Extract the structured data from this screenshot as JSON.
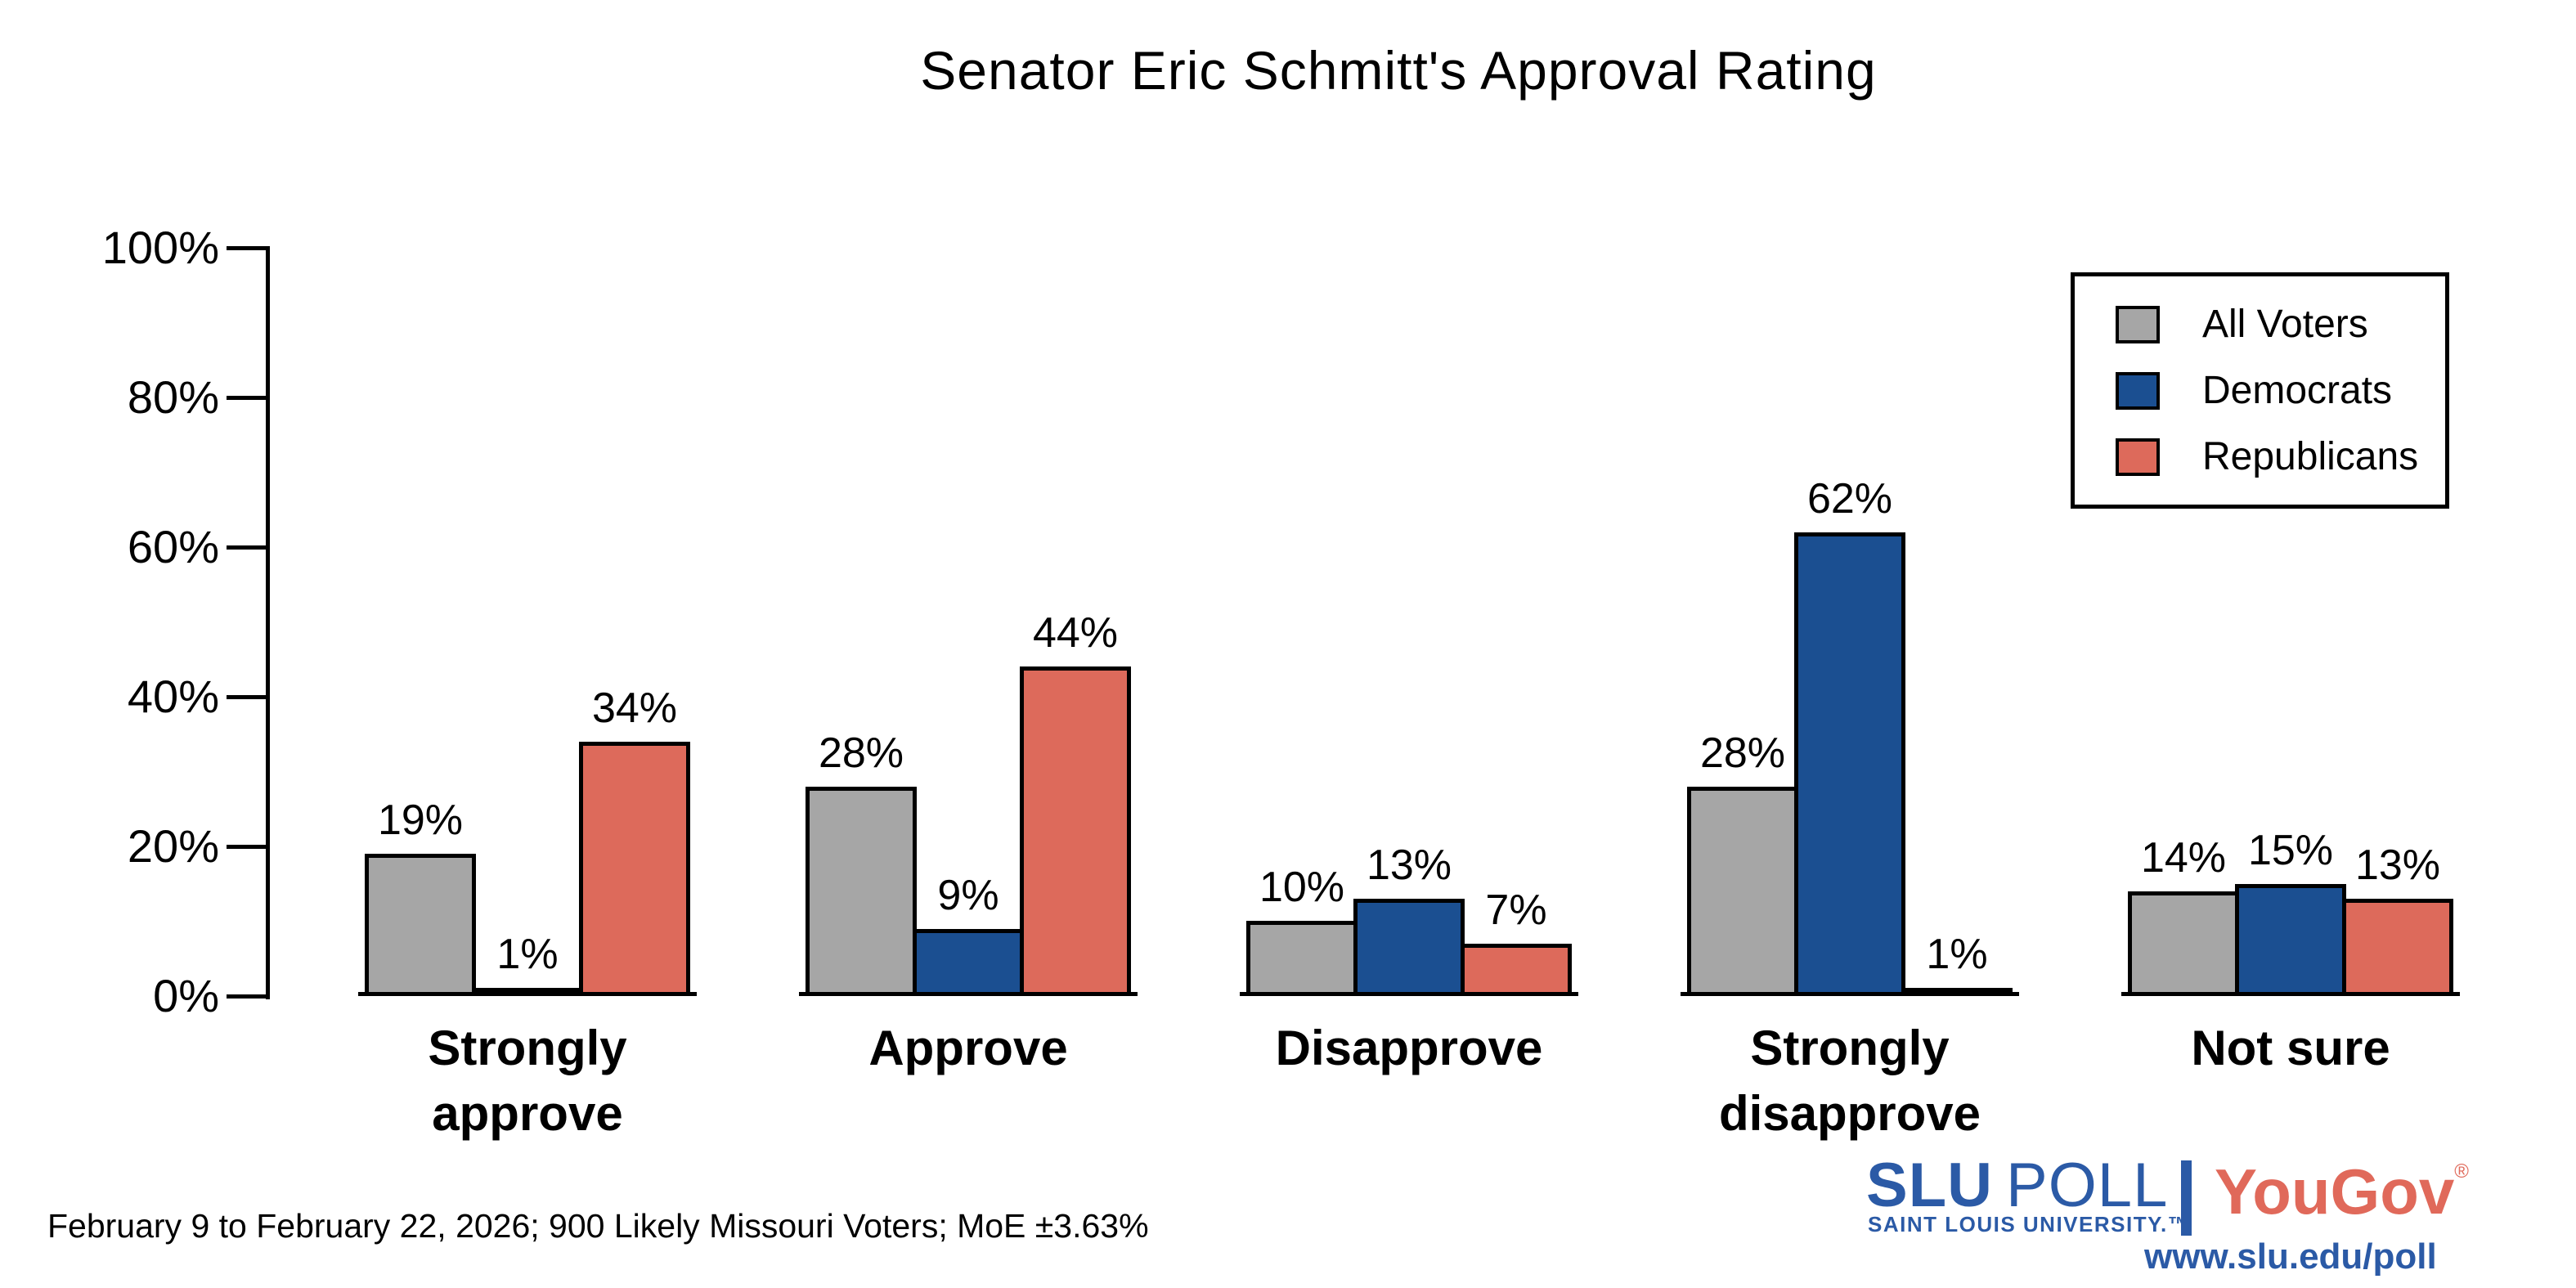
{
  "header": {
    "title": "Senator Eric Schmitt's Approval Rating"
  },
  "chart_data": {
    "type": "bar",
    "title": "Senator Eric Schmitt's Approval Rating",
    "categories": [
      "Strongly approve",
      "Approve",
      "Disapprove",
      "Strongly disapprove",
      "Not sure"
    ],
    "category_display_labels": [
      "Strongly\napprove",
      "Approve",
      "Disapprove",
      "Strongly\ndisapprove",
      "Not sure"
    ],
    "series": [
      {
        "name": "All Voters",
        "color": "#a6a6a6",
        "values": [
          19,
          28,
          10,
          28,
          14
        ]
      },
      {
        "name": "Democrats",
        "color": "#1b4f91",
        "values": [
          1,
          9,
          13,
          62,
          15
        ]
      },
      {
        "name": "Republicans",
        "color": "#dd6a5b",
        "values": [
          34,
          44,
          7,
          1,
          13
        ]
      }
    ],
    "value_suffix": "%",
    "bar_outline_color": "#000000",
    "xlabel": "",
    "ylabel": "",
    "ylim": [
      0,
      100
    ],
    "yticks": [
      {
        "label": "0%",
        "value": 0
      },
      {
        "label": "20%",
        "value": 20
      },
      {
        "label": "40%",
        "value": 40
      },
      {
        "label": "60%",
        "value": 60
      },
      {
        "label": "80%",
        "value": 80
      },
      {
        "label": "100%",
        "value": 100
      }
    ],
    "grid": false,
    "legend_position": "top-right"
  },
  "footer": {
    "text": "February 9 to February 22, 2026; 900 Likely Missouri Voters; MoE ±3.63%"
  },
  "branding": {
    "slu_bold": "SLU",
    "slu_light": "POLL",
    "university": "SAINT LOUIS UNIVERSITY.™",
    "yougov": "YouGov",
    "registered": "®",
    "url": "www.slu.edu/poll",
    "slu_blue": "#2b5aa6",
    "yougov_coral": "#e0695a"
  }
}
